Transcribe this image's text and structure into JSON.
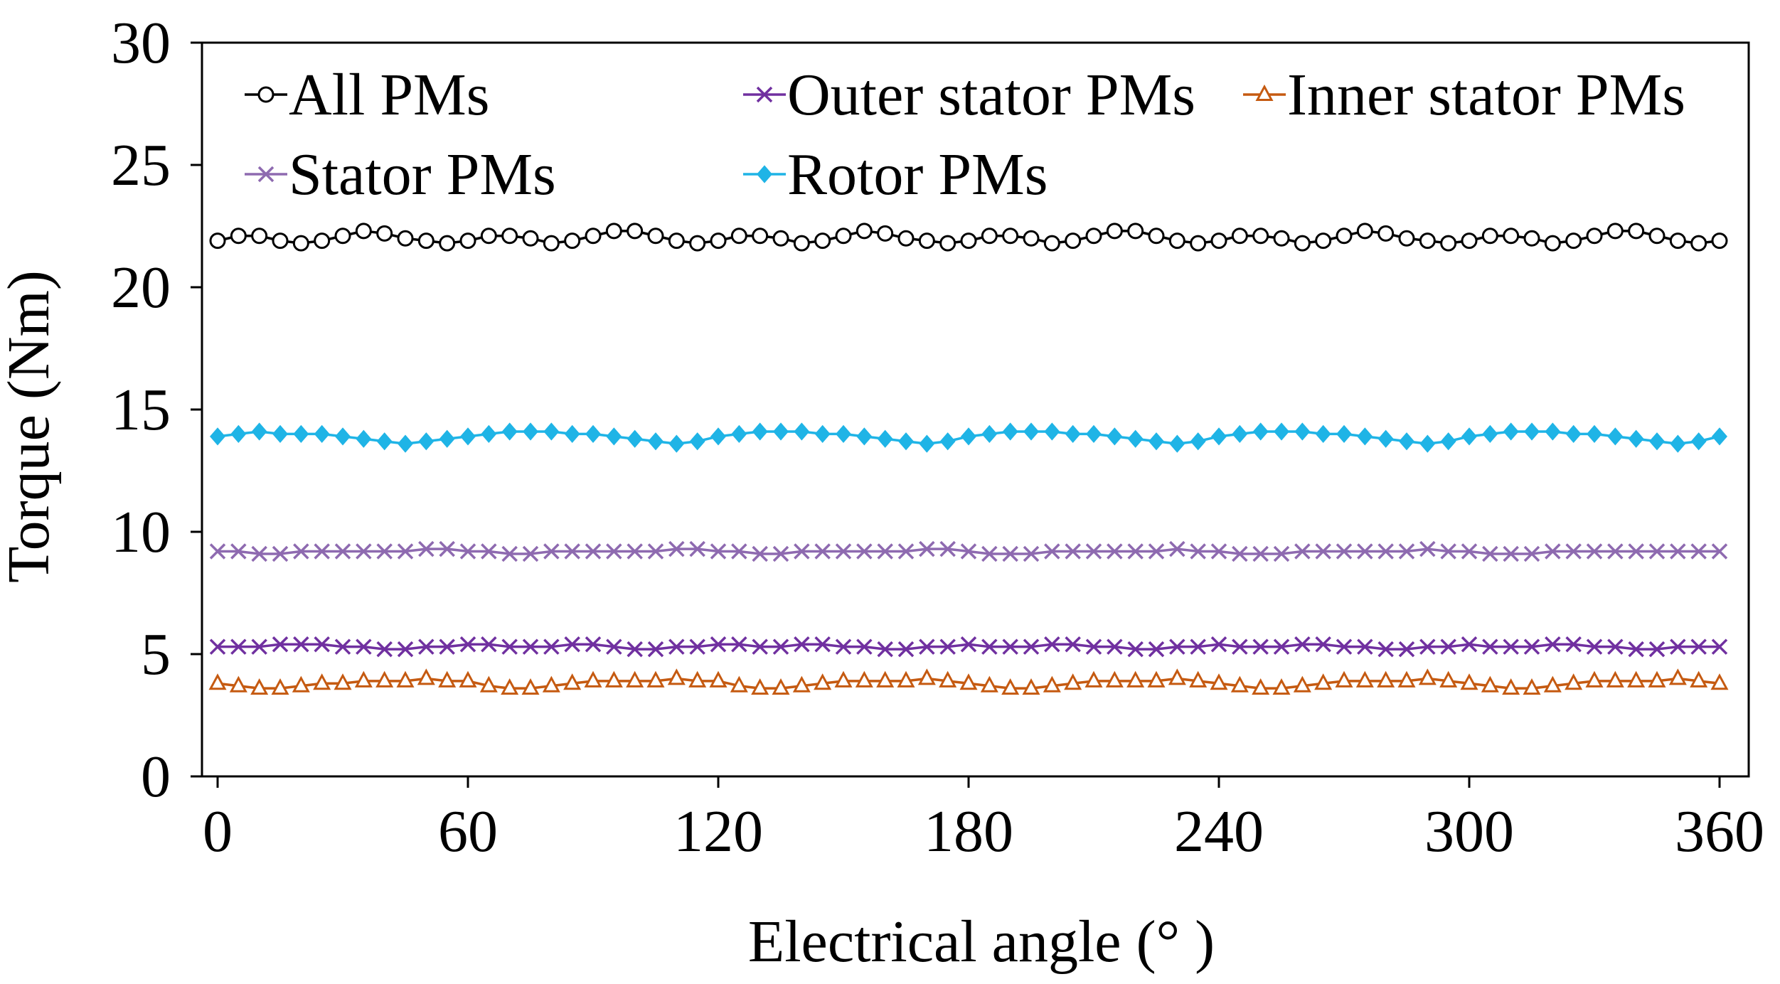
{
  "chart_data": {
    "type": "line",
    "title": "",
    "xlabel": "Electrical angle (° )",
    "ylabel": "Torque (Nm)",
    "xlim": [
      0,
      360
    ],
    "ylim": [
      0,
      30
    ],
    "xticks": [
      "0",
      "60",
      "120",
      "180",
      "240",
      "300",
      "360"
    ],
    "xtick_values": [
      0,
      60,
      120,
      180,
      240,
      300,
      360
    ],
    "yticks": [
      "0",
      "5",
      "10",
      "15",
      "20",
      "25",
      "30"
    ],
    "ytick_values": [
      0,
      5,
      10,
      15,
      20,
      25,
      30
    ],
    "grid": false,
    "legend_position": "top",
    "series": [
      {
        "name": "All PMs",
        "color": "#000000",
        "marker": "circle",
        "x": [
          0,
          5,
          10,
          15,
          20,
          25,
          30,
          35,
          40,
          45,
          50,
          55,
          60,
          65,
          70,
          75,
          80,
          85,
          90,
          95,
          100,
          105,
          110,
          115,
          120,
          125,
          130,
          135,
          140,
          145,
          150,
          155,
          160,
          165,
          170,
          175,
          180,
          185,
          190,
          195,
          200,
          205,
          210,
          215,
          220,
          225,
          230,
          235,
          240,
          245,
          250,
          255,
          260,
          265,
          270,
          275,
          280,
          285,
          290,
          295,
          300,
          305,
          310,
          315,
          320,
          325,
          330,
          335,
          340,
          345,
          350,
          355,
          360
        ],
        "y": [
          21.9,
          22.1,
          22.1,
          21.9,
          21.8,
          21.9,
          22.1,
          22.3,
          22.2,
          22.0,
          21.9,
          21.8,
          21.9,
          22.1,
          22.1,
          22.0,
          21.8,
          21.9,
          22.1,
          22.3,
          22.3,
          22.1,
          21.9,
          21.8,
          21.9,
          22.1,
          22.1,
          22.0,
          21.8,
          21.9,
          22.1,
          22.3,
          22.2,
          22.0,
          21.9,
          21.8,
          21.9,
          22.1,
          22.1,
          22.0,
          21.8,
          21.9,
          22.1,
          22.3,
          22.3,
          22.1,
          21.9,
          21.8,
          21.9,
          22.1,
          22.1,
          22.0,
          21.8,
          21.9,
          22.1,
          22.3,
          22.2,
          22.0,
          21.9,
          21.8,
          21.9,
          22.1,
          22.1,
          22.0,
          21.8,
          21.9,
          22.1,
          22.3,
          22.3,
          22.1,
          21.9,
          21.8,
          21.9
        ]
      },
      {
        "name": "Outer stator PMs",
        "color": "#7030a0",
        "marker": "x",
        "x": [
          0,
          5,
          10,
          15,
          20,
          25,
          30,
          35,
          40,
          45,
          50,
          55,
          60,
          65,
          70,
          75,
          80,
          85,
          90,
          95,
          100,
          105,
          110,
          115,
          120,
          125,
          130,
          135,
          140,
          145,
          150,
          155,
          160,
          165,
          170,
          175,
          180,
          185,
          190,
          195,
          200,
          205,
          210,
          215,
          220,
          225,
          230,
          235,
          240,
          245,
          250,
          255,
          260,
          265,
          270,
          275,
          280,
          285,
          290,
          295,
          300,
          305,
          310,
          315,
          320,
          325,
          330,
          335,
          340,
          345,
          350,
          355,
          360
        ],
        "y": [
          5.3,
          5.3,
          5.3,
          5.4,
          5.4,
          5.4,
          5.3,
          5.3,
          5.2,
          5.2,
          5.3,
          5.3,
          5.4,
          5.4,
          5.3,
          5.3,
          5.3,
          5.4,
          5.4,
          5.3,
          5.2,
          5.2,
          5.3,
          5.3,
          5.4,
          5.4,
          5.3,
          5.3,
          5.4,
          5.4,
          5.3,
          5.3,
          5.2,
          5.2,
          5.3,
          5.3,
          5.4,
          5.3,
          5.3,
          5.3,
          5.4,
          5.4,
          5.3,
          5.3,
          5.2,
          5.2,
          5.3,
          5.3,
          5.4,
          5.3,
          5.3,
          5.3,
          5.4,
          5.4,
          5.3,
          5.3,
          5.2,
          5.2,
          5.3,
          5.3,
          5.4,
          5.3,
          5.3,
          5.3,
          5.4,
          5.4,
          5.3,
          5.3,
          5.2,
          5.2,
          5.3,
          5.3,
          5.3
        ]
      },
      {
        "name": "Inner stator PMs",
        "color": "#c55a11",
        "marker": "triangle",
        "x": [
          0,
          5,
          10,
          15,
          20,
          25,
          30,
          35,
          40,
          45,
          50,
          55,
          60,
          65,
          70,
          75,
          80,
          85,
          90,
          95,
          100,
          105,
          110,
          115,
          120,
          125,
          130,
          135,
          140,
          145,
          150,
          155,
          160,
          165,
          170,
          175,
          180,
          185,
          190,
          195,
          200,
          205,
          210,
          215,
          220,
          225,
          230,
          235,
          240,
          245,
          250,
          255,
          260,
          265,
          270,
          275,
          280,
          285,
          290,
          295,
          300,
          305,
          310,
          315,
          320,
          325,
          330,
          335,
          340,
          345,
          350,
          355,
          360
        ],
        "y": [
          3.8,
          3.7,
          3.6,
          3.6,
          3.7,
          3.8,
          3.8,
          3.9,
          3.9,
          3.9,
          4.0,
          3.9,
          3.9,
          3.7,
          3.6,
          3.6,
          3.7,
          3.8,
          3.9,
          3.9,
          3.9,
          3.9,
          4.0,
          3.9,
          3.9,
          3.7,
          3.6,
          3.6,
          3.7,
          3.8,
          3.9,
          3.9,
          3.9,
          3.9,
          4.0,
          3.9,
          3.8,
          3.7,
          3.6,
          3.6,
          3.7,
          3.8,
          3.9,
          3.9,
          3.9,
          3.9,
          4.0,
          3.9,
          3.8,
          3.7,
          3.6,
          3.6,
          3.7,
          3.8,
          3.9,
          3.9,
          3.9,
          3.9,
          4.0,
          3.9,
          3.8,
          3.7,
          3.6,
          3.6,
          3.7,
          3.8,
          3.9,
          3.9,
          3.9,
          3.9,
          4.0,
          3.9,
          3.8
        ]
      },
      {
        "name": "Stator PMs",
        "color": "#8e6ab0",
        "marker": "x",
        "x": [
          0,
          5,
          10,
          15,
          20,
          25,
          30,
          35,
          40,
          45,
          50,
          55,
          60,
          65,
          70,
          75,
          80,
          85,
          90,
          95,
          100,
          105,
          110,
          115,
          120,
          125,
          130,
          135,
          140,
          145,
          150,
          155,
          160,
          165,
          170,
          175,
          180,
          185,
          190,
          195,
          200,
          205,
          210,
          215,
          220,
          225,
          230,
          235,
          240,
          245,
          250,
          255,
          260,
          265,
          270,
          275,
          280,
          285,
          290,
          295,
          300,
          305,
          310,
          315,
          320,
          325,
          330,
          335,
          340,
          345,
          350,
          355,
          360
        ],
        "y": [
          9.2,
          9.2,
          9.1,
          9.1,
          9.2,
          9.2,
          9.2,
          9.2,
          9.2,
          9.2,
          9.3,
          9.3,
          9.2,
          9.2,
          9.1,
          9.1,
          9.2,
          9.2,
          9.2,
          9.2,
          9.2,
          9.2,
          9.3,
          9.3,
          9.2,
          9.2,
          9.1,
          9.1,
          9.2,
          9.2,
          9.2,
          9.2,
          9.2,
          9.2,
          9.3,
          9.3,
          9.2,
          9.1,
          9.1,
          9.1,
          9.2,
          9.2,
          9.2,
          9.2,
          9.2,
          9.2,
          9.3,
          9.2,
          9.2,
          9.1,
          9.1,
          9.1,
          9.2,
          9.2,
          9.2,
          9.2,
          9.2,
          9.2,
          9.3,
          9.2,
          9.2,
          9.1,
          9.1,
          9.1,
          9.2,
          9.2,
          9.2,
          9.2,
          9.2,
          9.2,
          9.2,
          9.2,
          9.2
        ]
      },
      {
        "name": "Rotor PMs",
        "color": "#1fb4e6",
        "marker": "diamond",
        "x": [
          0,
          5,
          10,
          15,
          20,
          25,
          30,
          35,
          40,
          45,
          50,
          55,
          60,
          65,
          70,
          75,
          80,
          85,
          90,
          95,
          100,
          105,
          110,
          115,
          120,
          125,
          130,
          135,
          140,
          145,
          150,
          155,
          160,
          165,
          170,
          175,
          180,
          185,
          190,
          195,
          200,
          205,
          210,
          215,
          220,
          225,
          230,
          235,
          240,
          245,
          250,
          255,
          260,
          265,
          270,
          275,
          280,
          285,
          290,
          295,
          300,
          305,
          310,
          315,
          320,
          325,
          330,
          335,
          340,
          345,
          350,
          355,
          360
        ],
        "y": [
          13.9,
          14.0,
          14.1,
          14.0,
          14.0,
          14.0,
          13.9,
          13.8,
          13.7,
          13.6,
          13.7,
          13.8,
          13.9,
          14.0,
          14.1,
          14.1,
          14.1,
          14.0,
          14.0,
          13.9,
          13.8,
          13.7,
          13.6,
          13.7,
          13.9,
          14.0,
          14.1,
          14.1,
          14.1,
          14.0,
          14.0,
          13.9,
          13.8,
          13.7,
          13.6,
          13.7,
          13.9,
          14.0,
          14.1,
          14.1,
          14.1,
          14.0,
          14.0,
          13.9,
          13.8,
          13.7,
          13.6,
          13.7,
          13.9,
          14.0,
          14.1,
          14.1,
          14.1,
          14.0,
          14.0,
          13.9,
          13.8,
          13.7,
          13.6,
          13.7,
          13.9,
          14.0,
          14.1,
          14.1,
          14.1,
          14.0,
          14.0,
          13.9,
          13.8,
          13.7,
          13.6,
          13.7,
          13.9
        ]
      }
    ]
  }
}
